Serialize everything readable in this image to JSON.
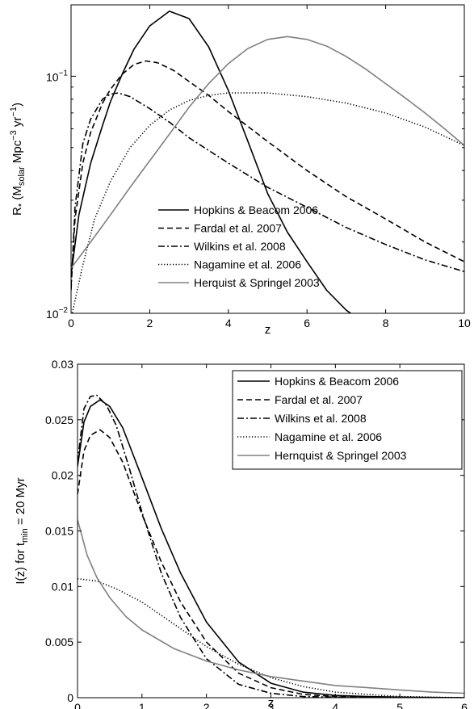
{
  "chart_data": [
    {
      "type": "line",
      "xlabel": "z",
      "ylabel": "R* (Msolar Mpc^-3 yr^-1)",
      "ylabel_parts": {
        "r": "R",
        "star": "*",
        "open": " (M",
        "solar": "solar",
        "mpc": " Mpc",
        "mpc_exp": "−3",
        "yr": " yr",
        "yr_exp": "−1",
        "close": ")"
      },
      "yscale": "log",
      "xlim": [
        0,
        10
      ],
      "ylim": [
        0.01,
        0.2
      ],
      "xticks": [
        0,
        2,
        4,
        6,
        8,
        10
      ],
      "yticks": [
        {
          "value": 0.01,
          "base": "10",
          "exp": "−2"
        },
        {
          "value": 0.1,
          "base": "10",
          "exp": "−1"
        }
      ],
      "grid": false,
      "legend_position": "lower-right",
      "series": [
        {
          "name": "Hopkins & Beacom 2006",
          "color": "#000000",
          "style": "solid",
          "x": [
            0,
            0.2,
            0.5,
            0.8,
            1.0,
            1.3,
            1.6,
            2.0,
            2.5,
            3.0,
            3.5,
            4.0,
            4.5,
            5.0,
            5.5,
            6.0,
            6.5,
            7.0,
            7.3
          ],
          "y": [
            0.0145,
            0.026,
            0.043,
            0.062,
            0.078,
            0.102,
            0.13,
            0.163,
            0.188,
            0.175,
            0.133,
            0.087,
            0.053,
            0.032,
            0.022,
            0.0165,
            0.0125,
            0.0103,
            0.0095
          ]
        },
        {
          "name": "Fardal et al. 2007",
          "color": "#000000",
          "style": "dashed",
          "x": [
            0,
            0.1,
            0.3,
            0.5,
            0.8,
            1.0,
            1.3,
            1.6,
            1.9,
            2.2,
            2.6,
            3.0,
            3.5,
            4.0,
            5.0,
            6.0,
            7.0,
            8.0,
            9.0,
            10.0
          ],
          "y": [
            0.013,
            0.025,
            0.043,
            0.058,
            0.077,
            0.088,
            0.102,
            0.112,
            0.116,
            0.114,
            0.106,
            0.095,
            0.083,
            0.071,
            0.053,
            0.04,
            0.031,
            0.025,
            0.02,
            0.0165
          ]
        },
        {
          "name": "Wilkins et al. 2008",
          "color": "#000000",
          "style": "dashdot",
          "x": [
            0,
            0.1,
            0.3,
            0.5,
            0.8,
            1.0,
            1.2,
            1.5,
            2.0,
            2.5,
            3.0,
            4.0,
            5.0,
            6.0,
            7.0,
            8.0,
            9.0,
            10.0
          ],
          "y": [
            0.0125,
            0.028,
            0.052,
            0.066,
            0.08,
            0.084,
            0.085,
            0.082,
            0.073,
            0.064,
            0.055,
            0.043,
            0.034,
            0.028,
            0.023,
            0.0195,
            0.0168,
            0.015
          ]
        },
        {
          "name": "Nagamine et al. 2006",
          "color": "#000000",
          "style": "dotted",
          "x": [
            0,
            0.3,
            0.6,
            1.0,
            1.5,
            2.0,
            2.5,
            3.0,
            3.5,
            4.0,
            5.0,
            6.0,
            7.0,
            8.0,
            9.0,
            10.0
          ],
          "y": [
            0.0095,
            0.016,
            0.025,
            0.036,
            0.05,
            0.062,
            0.072,
            0.079,
            0.083,
            0.085,
            0.085,
            0.082,
            0.077,
            0.07,
            0.061,
            0.051
          ]
        },
        {
          "name": "Herquist & Springel 2003",
          "color": "#808080",
          "style": "solid",
          "x": [
            0,
            0.5,
            1.0,
            1.5,
            2.0,
            2.5,
            3.0,
            3.5,
            4.0,
            4.5,
            5.0,
            5.5,
            6.0,
            6.5,
            7.0,
            7.5,
            8.0,
            8.5,
            9.0,
            9.5,
            10.0
          ],
          "y": [
            0.0155,
            0.02,
            0.026,
            0.034,
            0.044,
            0.057,
            0.074,
            0.093,
            0.113,
            0.131,
            0.143,
            0.147,
            0.143,
            0.134,
            0.121,
            0.107,
            0.093,
            0.081,
            0.07,
            0.06,
            0.051
          ]
        }
      ]
    },
    {
      "type": "line",
      "xlabel": "z",
      "ylabel": "I(z) for tmin = 20 Myr",
      "ylabel_parts": {
        "pre": "I(z) for t",
        "sub": "min",
        "post": " = 20 Myr"
      },
      "yscale": "linear",
      "xlim": [
        0,
        6
      ],
      "ylim": [
        0,
        0.03
      ],
      "xticks": [
        0,
        1,
        2,
        3,
        4,
        5,
        6
      ],
      "yticks": [
        {
          "value": 0,
          "label": "0"
        },
        {
          "value": 0.005,
          "label": "0.005"
        },
        {
          "value": 0.01,
          "label": "0.01"
        },
        {
          "value": 0.015,
          "label": "0.015"
        },
        {
          "value": 0.02,
          "label": "0.02"
        },
        {
          "value": 0.025,
          "label": "0.025"
        },
        {
          "value": 0.03,
          "label": "0.03"
        }
      ],
      "grid": false,
      "legend_position": "top-right",
      "series": [
        {
          "name": "Hopkins & Beacom 2006",
          "color": "#000000",
          "style": "solid",
          "x": [
            0,
            0.1,
            0.2,
            0.35,
            0.5,
            0.7,
            1.0,
            1.3,
            1.6,
            2.0,
            2.5,
            3.0,
            3.5,
            4.0,
            4.5,
            5.0,
            6.0
          ],
          "y": [
            0.0208,
            0.0248,
            0.0262,
            0.0268,
            0.0262,
            0.0243,
            0.0198,
            0.0152,
            0.0112,
            0.0068,
            0.0032,
            0.0013,
            0.0005,
            0.0002,
            0.0001,
            5e-05,
            0
          ]
        },
        {
          "name": "Fardal et al. 2007",
          "color": "#000000",
          "style": "dashed",
          "x": [
            0,
            0.1,
            0.2,
            0.35,
            0.5,
            0.7,
            1.0,
            1.3,
            1.6,
            2.0,
            2.5,
            3.0,
            3.5,
            4.0,
            4.5,
            5.0,
            6.0
          ],
          "y": [
            0.0183,
            0.0222,
            0.0236,
            0.0241,
            0.0234,
            0.0212,
            0.0165,
            0.0122,
            0.0086,
            0.005,
            0.0022,
            0.0009,
            0.0003,
            0.0001,
            5e-05,
            0,
            0
          ]
        },
        {
          "name": "Wilkins et al. 2008",
          "color": "#000000",
          "style": "dashdot",
          "x": [
            0,
            0.1,
            0.2,
            0.3,
            0.45,
            0.6,
            0.8,
            1.0,
            1.3,
            1.6,
            2.0,
            2.5,
            3.0,
            3.5,
            4.0,
            5.0,
            6.0
          ],
          "y": [
            0.0212,
            0.026,
            0.0271,
            0.0272,
            0.0263,
            0.0245,
            0.0207,
            0.0167,
            0.0112,
            0.0072,
            0.0035,
            0.0012,
            0.0004,
            0.0001,
            5e-05,
            0,
            0
          ]
        },
        {
          "name": "Nagamine et al. 2006",
          "color": "#000000",
          "style": "dotted",
          "x": [
            0,
            0.3,
            0.6,
            1.0,
            1.5,
            2.0,
            2.5,
            3.0,
            3.5,
            4.0,
            4.5,
            5.0,
            6.0
          ],
          "y": [
            0.0107,
            0.0105,
            0.0098,
            0.0086,
            0.0066,
            0.0046,
            0.003,
            0.0018,
            0.001,
            0.0005,
            0.0003,
            0.0001,
            0
          ]
        },
        {
          "name": "Hernquist & Springel 2003",
          "color": "#808080",
          "style": "solid",
          "x": [
            0,
            0.15,
            0.3,
            0.5,
            0.75,
            1.0,
            1.5,
            2.0,
            2.5,
            3.0,
            3.5,
            4.0,
            4.5,
            5.0,
            5.5,
            6.0
          ],
          "y": [
            0.016,
            0.0128,
            0.0108,
            0.009,
            0.0073,
            0.0061,
            0.0044,
            0.0033,
            0.0025,
            0.0019,
            0.0015,
            0.0011,
            0.0009,
            0.0007,
            0.0005,
            0.0004
          ]
        }
      ]
    }
  ]
}
